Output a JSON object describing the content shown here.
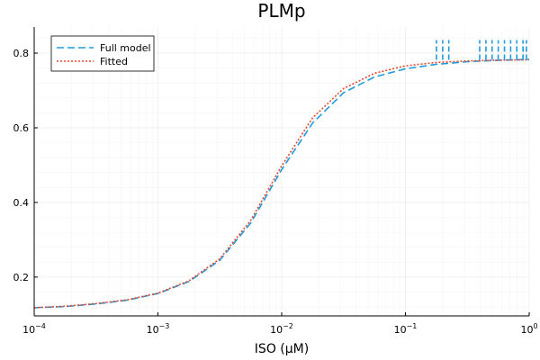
{
  "chart_data": {
    "type": "line",
    "title": "PLMp",
    "xlabel": "ISO (μM)",
    "ylabel": "",
    "xscale": "log10",
    "xlim": [
      0.0001,
      1
    ],
    "ylim": [
      0.096,
      0.87
    ],
    "x_ticks": [
      {
        "value": 0.0001,
        "base": "10",
        "exp": "−4"
      },
      {
        "value": 0.001,
        "base": "10",
        "exp": "−3"
      },
      {
        "value": 0.01,
        "base": "10",
        "exp": "−2"
      },
      {
        "value": 0.1,
        "base": "10",
        "exp": "−1"
      },
      {
        "value": 1,
        "base": "10",
        "exp": "0"
      }
    ],
    "y_ticks": [
      {
        "value": 0.2,
        "label": "0.2"
      },
      {
        "value": 0.4,
        "label": "0.4"
      },
      {
        "value": 0.6,
        "label": "0.6"
      },
      {
        "value": 0.8,
        "label": "0.8"
      }
    ],
    "grid": true,
    "legend_position": "top-left",
    "series": [
      {
        "name": "Full model",
        "color": "#1f9be0",
        "style": "dashed",
        "x": [
          0.0001,
          0.000178,
          0.000316,
          0.000562,
          0.001,
          0.00178,
          0.00316,
          0.00562,
          0.01,
          0.0178,
          0.0316,
          0.0562,
          0.1,
          0.178,
          0.316,
          0.562,
          1
        ],
        "y": [
          0.118,
          0.121,
          0.128,
          0.138,
          0.156,
          0.188,
          0.245,
          0.345,
          0.488,
          0.613,
          0.694,
          0.736,
          0.758,
          0.77,
          0.777,
          0.781,
          0.783
        ]
      },
      {
        "name": "Fitted",
        "color": "#e5482f",
        "style": "dotted",
        "x": [
          0.0001,
          0.000178,
          0.000316,
          0.000562,
          0.001,
          0.00178,
          0.00316,
          0.00562,
          0.01,
          0.0178,
          0.0316,
          0.0562,
          0.1,
          0.178,
          0.316,
          0.562,
          1
        ],
        "y": [
          0.118,
          0.122,
          0.129,
          0.139,
          0.157,
          0.19,
          0.249,
          0.352,
          0.498,
          0.627,
          0.705,
          0.746,
          0.766,
          0.775,
          0.779,
          0.781,
          0.782
        ]
      }
    ],
    "spikes": {
      "series": "Full model",
      "base_y": 0.782,
      "peak_y": 0.835,
      "x": [
        0.178,
        0.2,
        0.224,
        0.398,
        0.447,
        0.501,
        0.562,
        0.631,
        0.708,
        0.794,
        0.891,
        0.95
      ]
    }
  }
}
